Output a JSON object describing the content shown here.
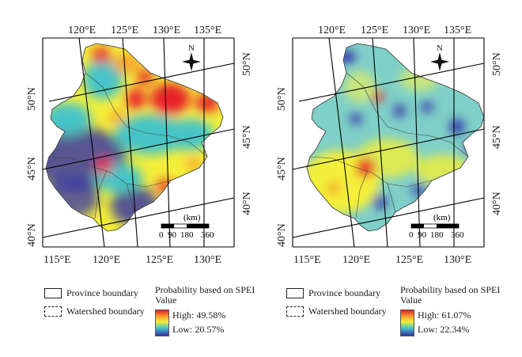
{
  "maps": [
    {
      "id": "left",
      "lon_labels_top": [
        "120°E",
        "125°E",
        "130°E",
        "135°E"
      ],
      "lon_labels_bottom": [
        "115°E",
        "120°E",
        "125°E",
        "130°E"
      ],
      "lat_labels_left": [
        "50°N",
        "45°N",
        "40°N"
      ],
      "lat_labels_right": [
        "50°N",
        "45°N",
        "40°N"
      ],
      "north_label": "N",
      "scale_unit": "(km)",
      "scale_ticks": [
        "0",
        "90",
        "180",
        "360"
      ],
      "legend": {
        "province": "Province boundary",
        "watershed": "Watershed boundary",
        "title": "Probability based on SPEI",
        "subtitle": "Value",
        "high": "High: 49.58%",
        "low": "Low: 20.57%"
      }
    },
    {
      "id": "right",
      "lon_labels_top": [
        "120°E",
        "125°E",
        "130°E",
        "135°E"
      ],
      "lon_labels_bottom": [
        "115°E",
        "120°E",
        "125°E",
        "130°E"
      ],
      "lat_labels_left": [
        "50°N",
        "45°N",
        "40°N"
      ],
      "lat_labels_right": [
        "50°N",
        "45°N",
        "40°N"
      ],
      "north_label": "N",
      "scale_unit": "(km)",
      "scale_ticks": [
        "0",
        "90",
        "180",
        "360"
      ],
      "legend": {
        "province": "Province boundary",
        "watershed": "Watershed boundary",
        "title": "Probability based on SPEI",
        "subtitle": "Value",
        "high": "High: 61.07%",
        "low": "Low: 22.34%"
      }
    }
  ],
  "colors": {
    "high": "#e8202a",
    "orange": "#f6a32a",
    "yellow": "#f3ef3a",
    "cyan": "#47c4c8",
    "low": "#3131a8"
  }
}
